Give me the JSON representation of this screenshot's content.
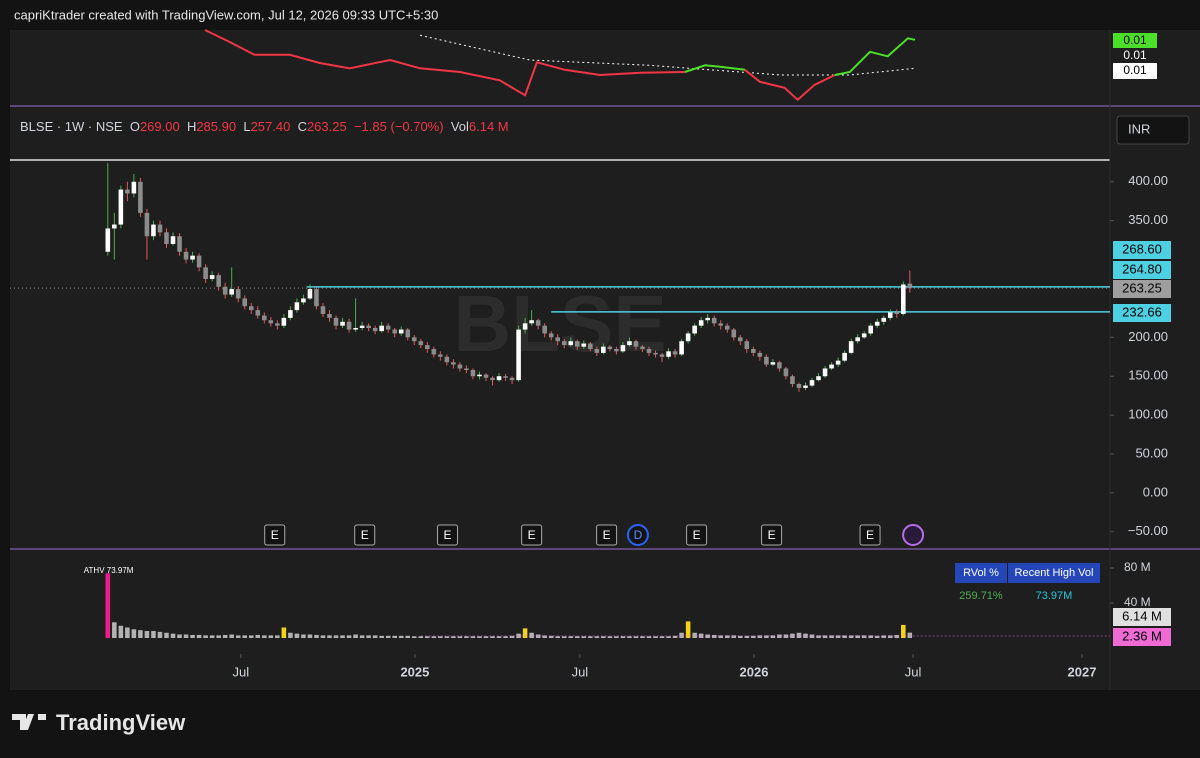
{
  "header": {
    "attribution": "capriKtrader created with TradingView.com, Jul 12, 2026 09:33 UTC+5:30"
  },
  "footer": {
    "logo": "TradingView"
  },
  "chart_data": {
    "type": "candlestick",
    "watermark": "BLSE",
    "currency": "INR",
    "legend": {
      "symbol": "BLSE · 1W · NSE",
      "o": "O",
      "open": "269.00",
      "h": "H",
      "high": "285.90",
      "l": "L",
      "low": "257.40",
      "c": "C",
      "close": "263.25",
      "change": "−1.85 (−0.70%)",
      "vol": "Vol",
      "volume": "6.14 M"
    },
    "up_color": "#ffffff",
    "down_color": "#8c8c8c",
    "wick_down": "#e05a5a",
    "wick_up": "#4caf50",
    "candles": [
      [
        310,
        424,
        305,
        340
      ],
      [
        340,
        360,
        300,
        345
      ],
      [
        345,
        395,
        340,
        390
      ],
      [
        390,
        400,
        375,
        385
      ],
      [
        385,
        410,
        380,
        400
      ],
      [
        400,
        405,
        355,
        360
      ],
      [
        360,
        365,
        300,
        330
      ],
      [
        330,
        350,
        325,
        345
      ],
      [
        345,
        350,
        330,
        335
      ],
      [
        335,
        340,
        315,
        320
      ],
      [
        320,
        335,
        318,
        330
      ],
      [
        330,
        334,
        305,
        310
      ],
      [
        310,
        315,
        295,
        300
      ],
      [
        300,
        310,
        296,
        305
      ],
      [
        305,
        308,
        285,
        290
      ],
      [
        290,
        294,
        270,
        275
      ],
      [
        275,
        285,
        272,
        280
      ],
      [
        280,
        283,
        260,
        265
      ],
      [
        265,
        270,
        250,
        255
      ],
      [
        255,
        290,
        252,
        262
      ],
      [
        262,
        266,
        245,
        250
      ],
      [
        250,
        254,
        236,
        240
      ],
      [
        240,
        244,
        230,
        235
      ],
      [
        235,
        240,
        224,
        228
      ],
      [
        228,
        232,
        218,
        222
      ],
      [
        222,
        226,
        214,
        218
      ],
      [
        218,
        222,
        210,
        215
      ],
      [
        215,
        230,
        212,
        225
      ],
      [
        225,
        240,
        222,
        235
      ],
      [
        235,
        250,
        232,
        245
      ],
      [
        245,
        255,
        242,
        250
      ],
      [
        250,
        268,
        248,
        262
      ],
      [
        262,
        264,
        236,
        240
      ],
      [
        240,
        244,
        226,
        230
      ],
      [
        230,
        235,
        220,
        225
      ],
      [
        225,
        228,
        210,
        215
      ],
      [
        215,
        225,
        212,
        220
      ],
      [
        220,
        224,
        206,
        210
      ],
      [
        210,
        250,
        207,
        212
      ],
      [
        212,
        220,
        209,
        215
      ],
      [
        215,
        218,
        208,
        212
      ],
      [
        212,
        215,
        204,
        208
      ],
      [
        208,
        220,
        206,
        215
      ],
      [
        215,
        218,
        206,
        210
      ],
      [
        210,
        212,
        200,
        205
      ],
      [
        205,
        214,
        202,
        210
      ],
      [
        210,
        212,
        196,
        200
      ],
      [
        200,
        203,
        190,
        195
      ],
      [
        195,
        198,
        186,
        190
      ],
      [
        190,
        194,
        180,
        185
      ],
      [
        185,
        188,
        174,
        178
      ],
      [
        178,
        182,
        170,
        175
      ],
      [
        175,
        178,
        164,
        168
      ],
      [
        168,
        172,
        160,
        165
      ],
      [
        165,
        168,
        156,
        160
      ],
      [
        160,
        164,
        154,
        158
      ],
      [
        158,
        160,
        146,
        150
      ],
      [
        150,
        156,
        146,
        152
      ],
      [
        152,
        154,
        144,
        148
      ],
      [
        148,
        150,
        138,
        145
      ],
      [
        145,
        154,
        143,
        150
      ],
      [
        150,
        153,
        144,
        148
      ],
      [
        148,
        150,
        140,
        145
      ],
      [
        145,
        215,
        143,
        210
      ],
      [
        210,
        225,
        205,
        218
      ],
      [
        218,
        235,
        215,
        222
      ],
      [
        222,
        224,
        210,
        215
      ],
      [
        215,
        218,
        200,
        205
      ],
      [
        205,
        208,
        196,
        200
      ],
      [
        200,
        204,
        190,
        195
      ],
      [
        195,
        198,
        186,
        190
      ],
      [
        190,
        200,
        188,
        195
      ],
      [
        195,
        197,
        184,
        188
      ],
      [
        188,
        196,
        185,
        192
      ],
      [
        192,
        194,
        182,
        185
      ],
      [
        185,
        188,
        176,
        180
      ],
      [
        180,
        192,
        178,
        188
      ],
      [
        188,
        190,
        182,
        185
      ],
      [
        185,
        188,
        178,
        182
      ],
      [
        182,
        194,
        180,
        190
      ],
      [
        190,
        200,
        188,
        195
      ],
      [
        195,
        197,
        184,
        188
      ],
      [
        188,
        190,
        181,
        185
      ],
      [
        185,
        188,
        176,
        180
      ],
      [
        180,
        183,
        174,
        178
      ],
      [
        178,
        180,
        168,
        175
      ],
      [
        175,
        186,
        172,
        182
      ],
      [
        182,
        185,
        174,
        178
      ],
      [
        178,
        198,
        176,
        195
      ],
      [
        195,
        208,
        192,
        205
      ],
      [
        205,
        218,
        202,
        215
      ],
      [
        215,
        226,
        212,
        222
      ],
      [
        222,
        230,
        218,
        225
      ],
      [
        225,
        228,
        214,
        218
      ],
      [
        218,
        222,
        210,
        215
      ],
      [
        215,
        218,
        206,
        210
      ],
      [
        210,
        212,
        196,
        200
      ],
      [
        200,
        203,
        190,
        195
      ],
      [
        195,
        198,
        180,
        185
      ],
      [
        185,
        188,
        176,
        180
      ],
      [
        180,
        183,
        170,
        175
      ],
      [
        175,
        178,
        162,
        165
      ],
      [
        165,
        172,
        163,
        168
      ],
      [
        168,
        170,
        156,
        160
      ],
      [
        160,
        162,
        146,
        150
      ],
      [
        150,
        152,
        136,
        140
      ],
      [
        140,
        142,
        130,
        135
      ],
      [
        135,
        142,
        132,
        138
      ],
      [
        138,
        148,
        136,
        145
      ],
      [
        145,
        154,
        143,
        150
      ],
      [
        150,
        163,
        148,
        160
      ],
      [
        160,
        168,
        158,
        165
      ],
      [
        165,
        174,
        162,
        170
      ],
      [
        170,
        183,
        168,
        180
      ],
      [
        180,
        198,
        178,
        195
      ],
      [
        195,
        204,
        192,
        200
      ],
      [
        200,
        208,
        198,
        205
      ],
      [
        205,
        218,
        202,
        215
      ],
      [
        215,
        224,
        212,
        220
      ],
      [
        220,
        228,
        216,
        225
      ],
      [
        225,
        236,
        222,
        232
      ],
      [
        232,
        236,
        225,
        230
      ],
      [
        230,
        272,
        228,
        268
      ],
      [
        269,
        285.9,
        257.4,
        263.25
      ]
    ],
    "xlim": [
      -15,
      153.7
    ],
    "xticks": [
      {
        "value": 20.4,
        "label": "Jul"
      },
      {
        "value": 47.1,
        "label": "2025"
      },
      {
        "value": 72.4,
        "label": "Jul"
      },
      {
        "value": 99.1,
        "label": "2026"
      },
      {
        "value": 123.5,
        "label": "Jul"
      },
      {
        "value": 149.4,
        "label": "2027"
      }
    ],
    "ylim": [
      -67,
      428
    ],
    "yticks": [
      {
        "value": 400,
        "label": "400.00"
      },
      {
        "value": 350,
        "label": "350.00"
      },
      {
        "value": 200,
        "label": "200.00"
      },
      {
        "value": 150,
        "label": "150.00"
      },
      {
        "value": 100,
        "label": "100.00"
      },
      {
        "value": 50,
        "label": "50.00"
      },
      {
        "value": 0,
        "label": "0.00"
      },
      {
        "value": -50,
        "label": "−50.00"
      }
    ],
    "levels": [
      {
        "value": 264.8,
        "start": 30.5,
        "color": "#4dd0e1"
      },
      {
        "value": 232.66,
        "start": 68,
        "color": "#4dd0e1"
      }
    ],
    "price_labels": [
      {
        "value": 268.6,
        "label": "268.60",
        "color": "#4dd0e1"
      },
      {
        "value": 264.8,
        "label": "264.80",
        "color": "#4dd0e1"
      },
      {
        "value": 263.25,
        "label": "263.25",
        "color": "#9e9e9e"
      },
      {
        "value": 232.66,
        "label": "232.66",
        "color": "#4dd0e1"
      }
    ],
    "events": [
      {
        "label": "E",
        "x": 25.6
      },
      {
        "label": "E",
        "x": 39.4
      },
      {
        "label": "E",
        "x": 52.1
      },
      {
        "label": "E",
        "x": 65
      },
      {
        "label": "E",
        "x": 76.5
      },
      {
        "label": "D",
        "x": 81.3
      },
      {
        "label": "E",
        "x": 90.3
      },
      {
        "label": "E",
        "x": 101.8
      },
      {
        "label": "E",
        "x": 116.9
      }
    ],
    "volume": {
      "values": [
        73.97,
        18,
        14,
        12,
        10,
        9,
        8,
        8,
        7,
        6,
        5,
        4,
        4,
        3.5,
        3.5,
        3,
        3,
        3,
        3.5,
        4,
        3,
        3,
        3,
        3.5,
        3,
        3,
        3,
        12,
        6,
        5,
        4,
        4,
        3.5,
        3,
        3,
        3,
        3,
        3,
        4,
        3,
        3,
        3,
        2.5,
        2.5,
        2.5,
        2.5,
        2.5,
        2,
        2,
        2,
        2,
        2,
        2,
        2,
        2,
        2,
        2,
        2,
        2,
        2,
        2,
        2,
        2.5,
        5,
        11,
        6,
        4,
        3,
        2.5,
        2,
        2,
        2,
        2,
        2,
        2,
        2,
        2,
        2,
        2,
        2,
        2,
        2,
        2,
        2,
        2,
        2,
        2,
        2.5,
        6,
        19,
        6,
        5,
        4,
        3.5,
        3,
        3,
        3,
        2.5,
        2.5,
        2.5,
        3,
        3,
        3,
        4,
        4,
        5,
        6,
        5,
        4,
        3,
        3,
        3,
        3,
        3,
        3,
        3,
        3,
        3,
        2.5,
        3,
        3,
        3.5,
        15,
        6.14
      ],
      "color": "#b2b2b2",
      "highlight_color": "#f2d21b",
      "ath_color": "#e91e8c",
      "highlight": [
        27,
        64,
        89,
        122
      ],
      "ylim": [
        -13.7,
        98.3
      ],
      "yticks": [
        {
          "value": 80,
          "label": "80 M"
        },
        {
          "value": 40,
          "label": "40 M"
        }
      ],
      "ath_label": "ATHV 73.97M",
      "last": {
        "value": 6.14,
        "label": "6.14 M",
        "color": "#e0e0e0"
      },
      "average": {
        "value": 2.36,
        "label": "2.36 M",
        "color": "#f06ad4",
        "start": 48
      },
      "table": {
        "headers": [
          "RVol %",
          "Recent High Vol"
        ],
        "values": [
          "259.71%",
          "73.97M"
        ]
      }
    },
    "indicator": {
      "ylim": [
        0,
        100
      ],
      "x": [
        14.9,
        18.7,
        22.5,
        27.9,
        32.5,
        37.1,
        43.3,
        47.9,
        54,
        60.1,
        64,
        65.8,
        70.1,
        75.5,
        81.6,
        88.5,
        91.6,
        93.9,
        97.7,
        100,
        103.8,
        105.8,
        108.4,
        111.5,
        113.8,
        116.9,
        119.6,
        122.7,
        123.8
      ],
      "series": [
        {
          "color": "#f23645",
          "values": [
            100,
            84,
            67,
            67,
            56,
            49,
            60,
            49,
            44,
            33,
            13,
            57,
            47,
            40,
            43,
            44,
            null,
            null,
            47,
            31,
            23,
            7,
            27,
            40,
            null,
            null,
            null,
            null,
            null
          ]
        },
        {
          "color": "#4cdf2a",
          "values": [
            null,
            null,
            null,
            null,
            null,
            null,
            null,
            null,
            null,
            null,
            null,
            null,
            null,
            null,
            null,
            44,
            53,
            51,
            47,
            null,
            null,
            null,
            null,
            40,
            44,
            71,
            65,
            89,
            87
          ]
        }
      ],
      "signal": {
        "x": [
          47.9,
          64.7,
          83.1,
          103.1,
          113.8,
          123.8
        ],
        "values": [
          93,
          60,
          53,
          40,
          40,
          49
        ],
        "color": "#ffffff"
      },
      "labels": [
        {
          "label": "0.01",
          "bg": "#4cdf2a",
          "fg": "#000000"
        },
        {
          "label": "0.01",
          "bg": "#1e1e1e",
          "fg": "#ffffff"
        },
        {
          "label": "0.01",
          "bg": "#ffffff",
          "fg": "#000000"
        }
      ]
    }
  }
}
